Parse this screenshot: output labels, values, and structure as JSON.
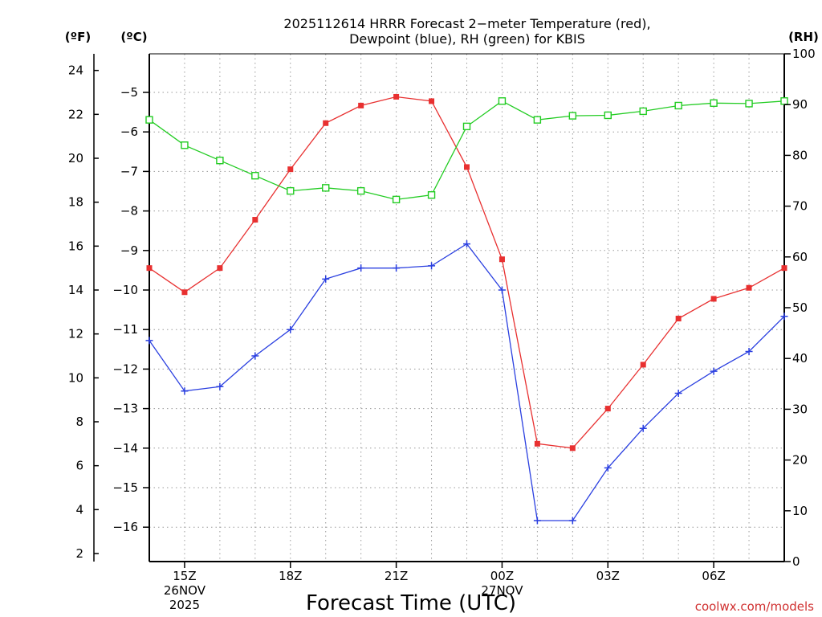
{
  "chart_data": {
    "type": "line",
    "title_lines": [
      "2025112614 HRRR Forecast 2−meter Temperature (red),",
      "Dewpoint (blue), RH (green) for KBIS"
    ],
    "xlabel": "Forecast Time (UTC)",
    "credit": "coolwx.com/models",
    "units": {
      "fahrenheit": "(ºF)",
      "celsius": "(ºC)",
      "rh": "(RH)"
    },
    "x_hours": [
      14,
      15,
      16,
      17,
      18,
      19,
      20,
      21,
      22,
      23,
      24,
      25,
      26,
      27,
      28,
      29,
      30,
      31,
      32
    ],
    "xlim": [
      14,
      32
    ],
    "x_ticks": [
      {
        "hour": 15,
        "lines": [
          "15Z",
          "26NOV",
          "2025"
        ]
      },
      {
        "hour": 18,
        "lines": [
          "18Z"
        ]
      },
      {
        "hour": 21,
        "lines": [
          "21Z"
        ]
      },
      {
        "hour": 24,
        "lines": [
          "00Z",
          "27NOV"
        ]
      },
      {
        "hour": 27,
        "lines": [
          "03Z"
        ]
      },
      {
        "hour": 30,
        "lines": [
          "06Z"
        ]
      }
    ],
    "y_celsius": {
      "ticks": [
        -5,
        -6,
        -7,
        -8,
        -9,
        -10,
        -11,
        -12,
        -13,
        -14,
        -15,
        -16
      ],
      "labels": [
        "−5",
        "−6",
        "−7",
        "−8",
        "−9",
        "−10",
        "−11",
        "−12",
        "−13",
        "−14",
        "−15",
        "−16"
      ]
    },
    "y_fahrenheit": {
      "ticks": [
        24,
        22,
        20,
        18,
        16,
        14,
        12,
        10,
        8,
        6,
        4,
        2
      ],
      "labels": [
        "24",
        "22",
        "20",
        "18",
        "16",
        "14",
        "12",
        "10",
        "8",
        "6",
        "4",
        "2"
      ]
    },
    "y_rh": {
      "ylim": [
        0,
        100
      ],
      "ticks": [
        100,
        90,
        80,
        70,
        60,
        50,
        40,
        30,
        20,
        10,
        0
      ],
      "labels": [
        "100",
        "90",
        "80",
        "70",
        "60",
        "50",
        "40",
        "30",
        "20",
        "10",
        "0"
      ]
    },
    "series": [
      {
        "name": "Temperature",
        "axis": "fahrenheit",
        "color": "#e83030",
        "marker": "filled-square",
        "values": [
          15.0,
          13.9,
          15.0,
          17.2,
          19.5,
          21.6,
          22.4,
          22.8,
          22.6,
          19.6,
          15.4,
          7.0,
          6.8,
          8.6,
          10.6,
          12.7,
          13.6,
          14.1,
          15.0
        ]
      },
      {
        "name": "Dewpoint",
        "axis": "fahrenheit",
        "color": "#2a3fe0",
        "marker": "plus",
        "values": [
          11.7,
          9.4,
          9.6,
          11.0,
          12.2,
          14.5,
          15.0,
          15.0,
          15.1,
          16.1,
          14.0,
          3.5,
          3.5,
          5.9,
          7.7,
          9.3,
          10.3,
          11.2,
          12.8
        ]
      },
      {
        "name": "RH",
        "axis": "rh",
        "color": "#22cc22",
        "marker": "open-square",
        "values": [
          87,
          82,
          79,
          76,
          73,
          73.6,
          73,
          71.3,
          72.2,
          85.7,
          90.7,
          87,
          87.8,
          87.9,
          88.7,
          89.8,
          90.3,
          90.2,
          90.7
        ]
      }
    ]
  }
}
